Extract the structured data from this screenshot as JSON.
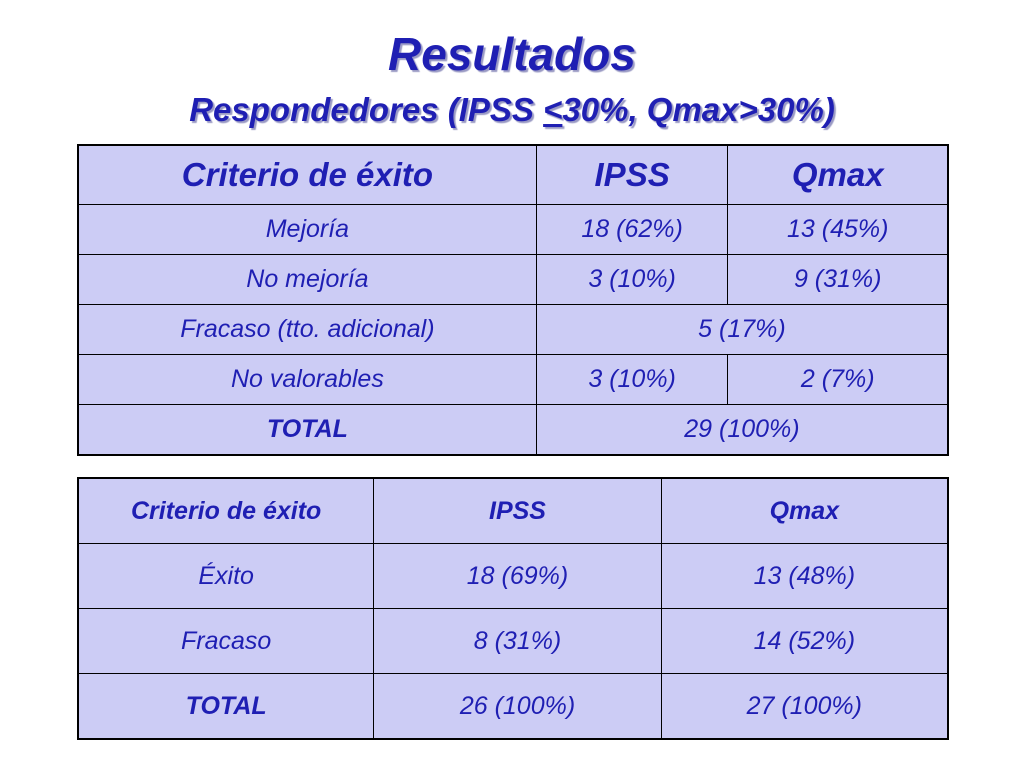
{
  "title": "Resultados",
  "subtitle": {
    "prefix": "Respondedores (IPSS ",
    "underlined": "<",
    "suffix": "30%, Qmax>30%)"
  },
  "colors": {
    "text": "#1f1fb3",
    "cell_background": "#ccccf5",
    "border": "#000000"
  },
  "table1": {
    "headers": [
      "Criterio de éxito",
      "IPSS",
      "Qmax"
    ],
    "rows": [
      {
        "label": "Mejoría",
        "ipss": "18 (62%)",
        "qmax": "13 (45%)"
      },
      {
        "label": "No mejoría",
        "ipss": "3 (10%)",
        "qmax": "9 (31%)"
      },
      {
        "label": "Fracaso (tto. adicional)",
        "merged": "5 (17%)"
      },
      {
        "label": "No valorables",
        "ipss": "3 (10%)",
        "qmax": "2 (7%)"
      },
      {
        "label": "TOTAL",
        "merged": "29 (100%)"
      }
    ]
  },
  "table2": {
    "headers": [
      "Criterio de éxito",
      "IPSS",
      "Qmax"
    ],
    "rows": [
      {
        "label": "Éxito",
        "ipss": "18 (69%)",
        "qmax": "13 (48%)"
      },
      {
        "label": "Fracaso",
        "ipss": "8 (31%)",
        "qmax": "14 (52%)"
      },
      {
        "label": "TOTAL",
        "ipss": "26 (100%)",
        "qmax": "27 (100%)"
      }
    ]
  }
}
